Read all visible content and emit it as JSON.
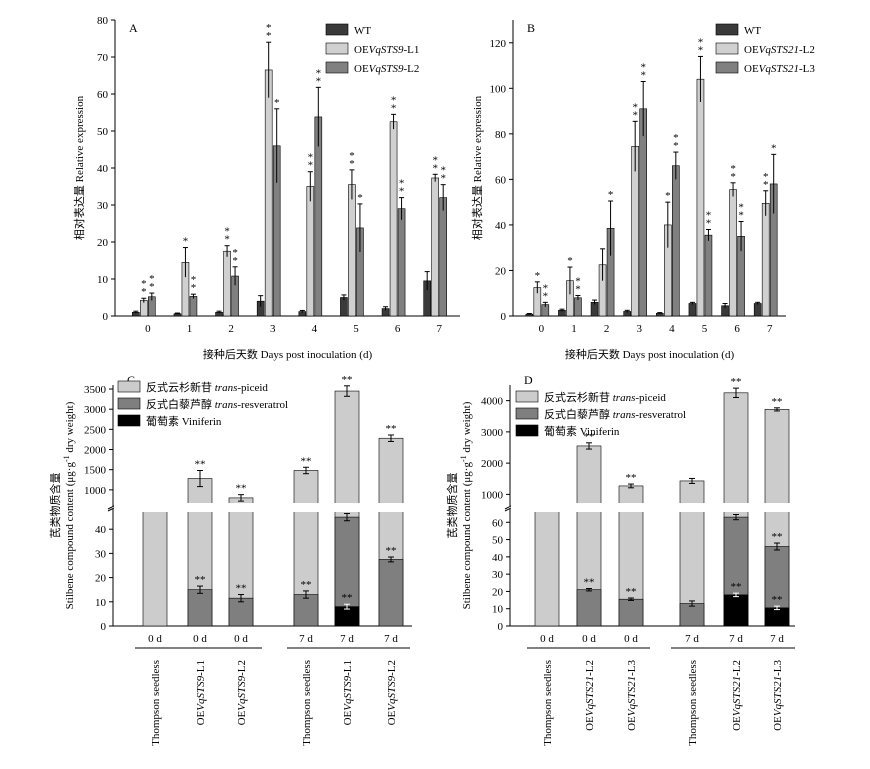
{
  "colors": {
    "wt": "#3a3a3a",
    "l1": "#d0d0d0",
    "l2": "#808080",
    "piceid": "#cccccc",
    "resveratrol": "#7f7f7f",
    "viniferin": "#000000"
  },
  "chart_data": [
    {
      "panel": "A",
      "type": "bar",
      "ylabel": "相对表达量 Relative expression",
      "xlabel": "接种后天数 Days post inoculation (d)",
      "categories": [
        "0",
        "1",
        "2",
        "3",
        "4",
        "5",
        "6",
        "7"
      ],
      "ylim": [
        0,
        80
      ],
      "yticks": [
        "0",
        "10",
        "20",
        "30",
        "40",
        "50",
        "60",
        "70",
        "80"
      ],
      "series": [
        {
          "name": "WT",
          "legend_pre": "WT",
          "legend_it": "",
          "legend_post": "",
          "values": [
            1,
            0.6,
            1,
            4,
            1.2,
            5,
            2,
            9.5
          ],
          "errors": [
            0.3,
            0.2,
            0.3,
            1.5,
            0.3,
            0.7,
            0.5,
            2.5
          ],
          "sig": [
            "",
            "",
            "",
            "",
            "",
            "",
            "",
            ""
          ]
        },
        {
          "name": "OEVqSTS9-L1",
          "legend_pre": "OE",
          "legend_it": "VqSTS9",
          "legend_post": "-L1",
          "values": [
            4.2,
            14.5,
            17.5,
            66.5,
            35,
            35.5,
            52.5,
            37.3
          ],
          "errors": [
            0.6,
            4,
            1.5,
            7.5,
            4,
            4,
            2,
            1
          ],
          "sig": [
            "**",
            "*",
            "**",
            "**",
            "**",
            "**",
            "**",
            "**"
          ]
        },
        {
          "name": "OEVqSTS9-L2",
          "legend_pre": "OE",
          "legend_it": "VqSTS9",
          "legend_post": "-L2",
          "values": [
            5.2,
            5.3,
            10.8,
            46,
            53.8,
            23.8,
            29,
            32
          ],
          "errors": [
            1,
            0.6,
            2.5,
            10,
            8,
            6.5,
            3,
            3.5
          ],
          "sig": [
            "**",
            "**",
            "**",
            "*",
            "**",
            "*",
            "**",
            "**"
          ]
        }
      ]
    },
    {
      "panel": "B",
      "type": "bar",
      "ylabel": "相对表达量 Relative expression",
      "xlabel": "接种后天数 Days post inoculation (d)",
      "categories": [
        "0",
        "1",
        "2",
        "3",
        "4",
        "5",
        "6",
        "7"
      ],
      "ylim": [
        0,
        130
      ],
      "yticks": [
        "0",
        "20",
        "40",
        "60",
        "80",
        "100",
        "120"
      ],
      "series": [
        {
          "name": "WT",
          "legend_pre": "WT",
          "legend_it": "",
          "legend_post": "",
          "values": [
            0.8,
            2.5,
            6,
            2,
            1.2,
            5.5,
            4.5,
            5.5
          ],
          "errors": [
            0.3,
            0.5,
            1,
            0.5,
            0.3,
            0.5,
            1,
            0.5
          ],
          "sig": [
            "",
            "",
            "",
            "",
            "",
            "",
            "",
            ""
          ]
        },
        {
          "name": "OEVqSTS21-L2",
          "legend_pre": "OE",
          "legend_it": "VqSTS21",
          "legend_post": "-L2",
          "values": [
            12.5,
            15.5,
            22.5,
            74.5,
            40,
            104,
            55.5,
            49.5
          ],
          "errors": [
            2.5,
            6,
            7,
            11,
            10,
            10,
            3,
            5.5
          ],
          "sig": [
            "*",
            "*",
            "",
            "**",
            "*",
            "**",
            "**",
            "**"
          ]
        },
        {
          "name": "OEVqSTS21-L3",
          "legend_pre": "OE",
          "legend_it": "VqSTS21",
          "legend_post": "-L3",
          "values": [
            5,
            8,
            38.5,
            91,
            66,
            35.5,
            35,
            58
          ],
          "errors": [
            1,
            1,
            12,
            12,
            6,
            2.5,
            6.5,
            13
          ],
          "sig": [
            "**",
            "**",
            "*",
            "**",
            "**",
            "**",
            "**",
            "*"
          ]
        }
      ]
    },
    {
      "panel": "C",
      "type": "stacked-bar",
      "ylabel_cn": "芪类物质含量",
      "ylabel_en_pre": "Stilbene compound content (μg·g",
      "ylabel_en_sup": "-1",
      "ylabel_en_post": " dry weight)",
      "ylim_lower": [
        0,
        50
      ],
      "ylim_upper": [
        500,
        3600
      ],
      "yticks_lower": [
        "0",
        "10",
        "20",
        "30",
        "40"
      ],
      "yticks_upper": [
        "1000",
        "1500",
        "2000",
        "2500",
        "3000",
        "3500"
      ],
      "legend": [
        {
          "cn": "反式云杉新苷 ",
          "it": "trans",
          "post": "-piceid"
        },
        {
          "cn": "反式白藜芦醇 ",
          "it": "trans",
          "post": "-resveratrol"
        },
        {
          "cn": "葡萄素 ",
          "it": "",
          "post": "Viniferin"
        }
      ],
      "bars": [
        {
          "day": "0 d",
          "pre": "Thompson seedless",
          "it": "",
          "post": "",
          "total": 550,
          "total_err": 20,
          "total_sig": "",
          "res": 0,
          "res_err": 0,
          "res_sig": "",
          "vin": 0,
          "vin_err": 0,
          "vin_sig": ""
        },
        {
          "day": "0 d",
          "pre": "OE",
          "it": "VqSTS9",
          "post": "-L1",
          "total": 1280,
          "total_err": 200,
          "total_sig": "**",
          "res": 15,
          "res_err": 1.5,
          "res_sig": "**",
          "vin": 0,
          "vin_err": 0,
          "vin_sig": ""
        },
        {
          "day": "0 d",
          "pre": "OE",
          "it": "VqSTS9",
          "post": "-L2",
          "total": 800,
          "total_err": 80,
          "total_sig": "**",
          "res": 11.5,
          "res_err": 1.5,
          "res_sig": "**",
          "vin": 0,
          "vin_err": 0,
          "vin_sig": ""
        },
        {
          "day": "7 d",
          "pre": "Thompson seedless",
          "it": "",
          "post": "",
          "total": 1480,
          "total_err": 80,
          "total_sig": "**",
          "res": 13,
          "res_err": 1.5,
          "res_sig": "**",
          "vin": 0,
          "vin_err": 0,
          "vin_sig": ""
        },
        {
          "day": "7 d",
          "pre": "OE",
          "it": "VqSTS9",
          "post": "-L1",
          "total": 3450,
          "total_err": 130,
          "total_sig": "**",
          "res": 45,
          "res_err": 1.5,
          "res_sig": "**",
          "vin": 8,
          "vin_err": 1,
          "vin_sig": "**"
        },
        {
          "day": "7 d",
          "pre": "OE",
          "it": "VqSTS9",
          "post": "-L2",
          "total": 2280,
          "total_err": 80,
          "total_sig": "**",
          "res": 27.5,
          "res_err": 1,
          "res_sig": "**",
          "vin": 0,
          "vin_err": 0,
          "vin_sig": ""
        }
      ]
    },
    {
      "panel": "D",
      "type": "stacked-bar",
      "ylabel_cn": "芪类物质含量",
      "ylabel_en_pre": "Stilbene compound content (μg·g",
      "ylabel_en_sup": "-1",
      "ylabel_en_post": " dry weight)",
      "ylim_lower": [
        0,
        70
      ],
      "ylim_upper": [
        500,
        4500
      ],
      "yticks_lower": [
        "0",
        "10",
        "20",
        "30",
        "40",
        "50",
        "60"
      ],
      "yticks_upper": [
        "1000",
        "2000",
        "3000",
        "4000"
      ],
      "legend": [
        {
          "cn": "反式云杉新苷 ",
          "it": "trans",
          "post": "-piceid"
        },
        {
          "cn": "反式白藜芦醇 ",
          "it": "trans",
          "post": "-resveratrol"
        },
        {
          "cn": "葡萄素 ",
          "it": "",
          "post": "Viniferin"
        }
      ],
      "bars": [
        {
          "day": "0 d",
          "pre": "Thompson seedless",
          "it": "",
          "post": "",
          "total": 550,
          "total_err": 20,
          "total_sig": "",
          "res": 0,
          "res_err": 0,
          "res_sig": "",
          "vin": 0,
          "vin_err": 0,
          "vin_sig": ""
        },
        {
          "day": "0 d",
          "pre": "OE",
          "it": "VqSTS21",
          "post": "-L2",
          "total": 2550,
          "total_err": 100,
          "total_sig": "**",
          "res": 21,
          "res_err": 0.7,
          "res_sig": "**",
          "vin": 0,
          "vin_err": 0,
          "vin_sig": ""
        },
        {
          "day": "0 d",
          "pre": "OE",
          "it": "VqSTS21",
          "post": "-L3",
          "total": 1270,
          "total_err": 60,
          "total_sig": "**",
          "res": 15.5,
          "res_err": 0.7,
          "res_sig": "**",
          "vin": 0,
          "vin_err": 0,
          "vin_sig": ""
        },
        {
          "day": "7 d",
          "pre": "Thompson seedless",
          "it": "",
          "post": "",
          "total": 1430,
          "total_err": 80,
          "total_sig": "",
          "res": 13,
          "res_err": 1.5,
          "res_sig": "",
          "vin": 0,
          "vin_err": 0,
          "vin_sig": ""
        },
        {
          "day": "7 d",
          "pre": "OE",
          "it": "VqSTS21",
          "post": "-L2",
          "total": 4250,
          "total_err": 150,
          "total_sig": "**",
          "res": 63,
          "res_err": 1.5,
          "res_sig": "**",
          "vin": 18,
          "vin_err": 1,
          "vin_sig": "**"
        },
        {
          "day": "7 d",
          "pre": "OE",
          "it": "VqSTS21",
          "post": "-L3",
          "total": 3720,
          "total_err": 50,
          "total_sig": "**",
          "res": 46,
          "res_err": 2,
          "res_sig": "**",
          "vin": 10.5,
          "vin_err": 1,
          "vin_sig": "**"
        }
      ]
    }
  ]
}
